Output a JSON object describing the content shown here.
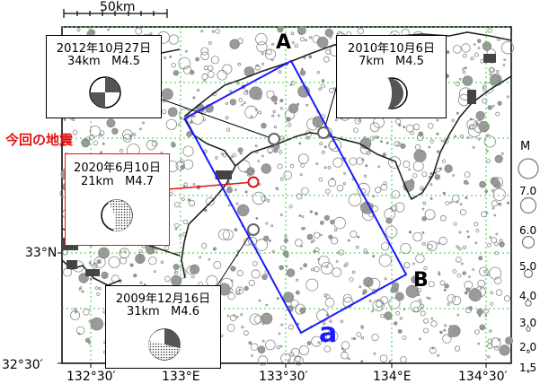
{
  "scale_bar": {
    "label": "50km"
  },
  "top_left_axis_minor": "",
  "x_axis": {
    "ticks": [
      "132°30′",
      "133°E",
      "133°30′",
      "134°E",
      "134°30′"
    ]
  },
  "y_axis": {
    "ticks": [
      "33°N",
      "32°30′"
    ]
  },
  "current_label": "今回の地震",
  "events": [
    {
      "date": "2012年10月27日",
      "depth": "34km",
      "mag": "M4.5"
    },
    {
      "date": "2010年10月6日",
      "depth": "7km",
      "mag": "M4.5"
    },
    {
      "date": "2020年6月10日",
      "depth": "21km",
      "mag": "M4.7"
    },
    {
      "date": "2009年12月16日",
      "depth": "31km",
      "mag": "M4.6"
    }
  ],
  "section": {
    "start": "A",
    "end": "B",
    "name": "a"
  },
  "legend": {
    "title": "M",
    "values": [
      "7.0",
      "6.0",
      "5.0",
      "4.0",
      "3.0",
      "2.0",
      "1.5"
    ]
  },
  "colors": {
    "section": "#1a1aff",
    "current": "#e11111",
    "grid": "#33cc33",
    "events": "#888888"
  }
}
